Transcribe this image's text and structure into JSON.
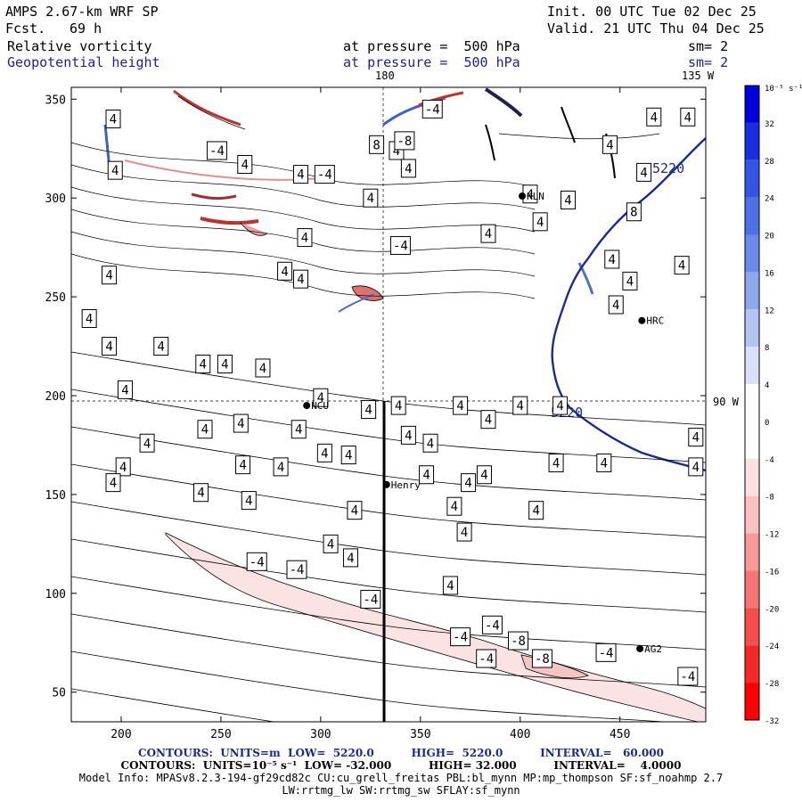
{
  "header": {
    "model": "AMPS 2.67-km WRF SP",
    "fcst_label": "Fcst.",
    "fcst_value": "69 h",
    "init": "Init. 00 UTC Tue 02 Dec 25",
    "valid": "Valid. 21 UTC Thu 04 Dec 25",
    "field1": "Relative vorticity",
    "field1_pressure": "at pressure =  500 hPa",
    "field1_sm": "sm= 2",
    "field2": "Geopotential height",
    "field2_pressure": "at pressure =  500 hPa",
    "field2_sm": "sm= 2"
  },
  "map_labels": {
    "top_180": "180",
    "top_135w": "135 W",
    "right_90w": "90 W",
    "contour_5220": "5220"
  },
  "stations": [
    {
      "name": "KLN",
      "x": 401,
      "y": 301
    },
    {
      "name": "HRC",
      "x": 461,
      "y": 238
    },
    {
      "name": "NCU",
      "x": 293,
      "y": 195
    },
    {
      "name": "Henry",
      "x": 333,
      "y": 155
    },
    {
      "name": "AG2",
      "x": 460,
      "y": 72
    }
  ],
  "colorbar": {
    "unit": "10⁻⁵ s⁻¹",
    "ticks": [
      "32",
      "28",
      "24",
      "20",
      "16",
      "12",
      "8",
      "4",
      "0",
      "-4",
      "-8",
      "-12",
      "-16",
      "-20",
      "-24",
      "-28",
      "-32"
    ],
    "colors": [
      "#0000dd",
      "#1a2ee0",
      "#3355e3",
      "#4d70e6",
      "#6b8ae9",
      "#8ea8ee",
      "#b3c4f3",
      "#d9e1f9",
      "#ffffff",
      "#ffffff",
      "#fde0e0",
      "#fbc0c0",
      "#f99a9a",
      "#f77474",
      "#f54c4c",
      "#f32828",
      "#ff0000"
    ]
  },
  "chart_data": {
    "type": "contour-map",
    "x_ticks": [
      200,
      250,
      300,
      350,
      400,
      450
    ],
    "y_ticks": [
      50,
      100,
      150,
      200,
      250,
      300,
      350
    ],
    "xlim": [
      175,
      493
    ],
    "ylim": [
      35,
      356
    ],
    "contour_labels": [
      {
        "t": "4",
        "x": 196,
        "y": 340
      },
      {
        "t": "4",
        "x": 197,
        "y": 314
      },
      {
        "t": "-4",
        "x": 248,
        "y": 324
      },
      {
        "t": "4",
        "x": 262,
        "y": 317
      },
      {
        "t": "4",
        "x": 290,
        "y": 312
      },
      {
        "t": "-4",
        "x": 302,
        "y": 312
      },
      {
        "t": "4",
        "x": 338,
        "y": 324
      },
      {
        "t": "8",
        "x": 328,
        "y": 327
      },
      {
        "t": "-8",
        "x": 342,
        "y": 329
      },
      {
        "t": "4",
        "x": 344,
        "y": 315
      },
      {
        "t": "-4",
        "x": 356,
        "y": 345
      },
      {
        "t": "4",
        "x": 325,
        "y": 300
      },
      {
        "t": "4",
        "x": 405,
        "y": 302
      },
      {
        "t": "4",
        "x": 424,
        "y": 299
      },
      {
        "t": "4",
        "x": 467,
        "y": 341
      },
      {
        "t": "4",
        "x": 484,
        "y": 341
      },
      {
        "t": "4",
        "x": 445,
        "y": 327
      },
      {
        "t": "4",
        "x": 462,
        "y": 313
      },
      {
        "t": "8",
        "x": 457,
        "y": 293
      },
      {
        "t": "4",
        "x": 410,
        "y": 288
      },
      {
        "t": "4",
        "x": 384,
        "y": 282
      },
      {
        "t": "4",
        "x": 446,
        "y": 269
      },
      {
        "t": "4",
        "x": 455,
        "y": 258
      },
      {
        "t": "4",
        "x": 448,
        "y": 246
      },
      {
        "t": "4",
        "x": 481,
        "y": 266
      },
      {
        "t": "-4",
        "x": 340,
        "y": 276
      },
      {
        "t": "4",
        "x": 292,
        "y": 280
      },
      {
        "t": "4",
        "x": 282,
        "y": 263
      },
      {
        "t": "4",
        "x": 290,
        "y": 259
      },
      {
        "t": "4",
        "x": 194,
        "y": 261
      },
      {
        "t": "4",
        "x": 184,
        "y": 239
      },
      {
        "t": "4",
        "x": 194,
        "y": 225
      },
      {
        "t": "4",
        "x": 202,
        "y": 203
      },
      {
        "t": "4",
        "x": 220,
        "y": 225
      },
      {
        "t": "4",
        "x": 241,
        "y": 216
      },
      {
        "t": "4",
        "x": 252,
        "y": 216
      },
      {
        "t": "4",
        "x": 271,
        "y": 214
      },
      {
        "t": "4",
        "x": 300,
        "y": 199
      },
      {
        "t": "4",
        "x": 260,
        "y": 186
      },
      {
        "t": "4",
        "x": 242,
        "y": 183
      },
      {
        "t": "4",
        "x": 213,
        "y": 176
      },
      {
        "t": "4",
        "x": 201,
        "y": 164
      },
      {
        "t": "4",
        "x": 339,
        "y": 195
      },
      {
        "t": "4",
        "x": 324,
        "y": 193
      },
      {
        "t": "4",
        "x": 370,
        "y": 195
      },
      {
        "t": "4",
        "x": 400,
        "y": 195
      },
      {
        "t": "4",
        "x": 420,
        "y": 195
      },
      {
        "t": "4",
        "x": 384,
        "y": 188
      },
      {
        "t": "4",
        "x": 289,
        "y": 183
      },
      {
        "t": "4",
        "x": 344,
        "y": 180
      },
      {
        "t": "4",
        "x": 355,
        "y": 176
      },
      {
        "t": "4",
        "x": 302,
        "y": 171
      },
      {
        "t": "4",
        "x": 314,
        "y": 170
      },
      {
        "t": "4",
        "x": 261,
        "y": 165
      },
      {
        "t": "4",
        "x": 280,
        "y": 164
      },
      {
        "t": "4",
        "x": 418,
        "y": 166
      },
      {
        "t": "4",
        "x": 442,
        "y": 166
      },
      {
        "t": "4",
        "x": 488,
        "y": 179
      },
      {
        "t": "4",
        "x": 488,
        "y": 164
      },
      {
        "t": "4",
        "x": 353,
        "y": 160
      },
      {
        "t": "4",
        "x": 382,
        "y": 160
      },
      {
        "t": "4",
        "x": 374,
        "y": 156
      },
      {
        "t": "4",
        "x": 240,
        "y": 151
      },
      {
        "t": "4",
        "x": 196,
        "y": 156
      },
      {
        "t": "4",
        "x": 264,
        "y": 147
      },
      {
        "t": "4",
        "x": 317,
        "y": 142
      },
      {
        "t": "4",
        "x": 367,
        "y": 144
      },
      {
        "t": "4",
        "x": 408,
        "y": 142
      },
      {
        "t": "4",
        "x": 372,
        "y": 131
      },
      {
        "t": "4",
        "x": 305,
        "y": 125
      },
      {
        "t": "4",
        "x": 315,
        "y": 118
      },
      {
        "t": "-4",
        "x": 268,
        "y": 116
      },
      {
        "t": "-4",
        "x": 288,
        "y": 112
      },
      {
        "t": "4",
        "x": 365,
        "y": 104
      },
      {
        "t": "-4",
        "x": 325,
        "y": 97
      },
      {
        "t": "-4",
        "x": 386,
        "y": 84
      },
      {
        "t": "-4",
        "x": 370,
        "y": 78
      },
      {
        "t": "-8",
        "x": 399,
        "y": 76
      },
      {
        "t": "-4",
        "x": 383,
        "y": 67
      },
      {
        "t": "-8",
        "x": 411,
        "y": 67
      },
      {
        "t": "-4",
        "x": 443,
        "y": 70
      },
      {
        "t": "-4",
        "x": 484,
        "y": 58
      }
    ]
  },
  "footer": {
    "line1": "CONTOURS:  UNITS=m  LOW=  5220.0          HIGH=  5220.0          INTERVAL=   60.000",
    "line2": "CONTOURS:  UNITS=10⁻⁵ s⁻¹  LOW= -32.000          HIGH= 32.000          INTERVAL=    4.0000",
    "line3": "Model Info: MPASv8.2.3-194-gf29cd82c CU:cu_grell_freitas PBL:bl_mynn MP:mp_thompson SF:sf_noahmp 2.7",
    "line4": "LW:rrtmg_lw SW:rrtmg_sw SFLAY:sf_mynn"
  }
}
